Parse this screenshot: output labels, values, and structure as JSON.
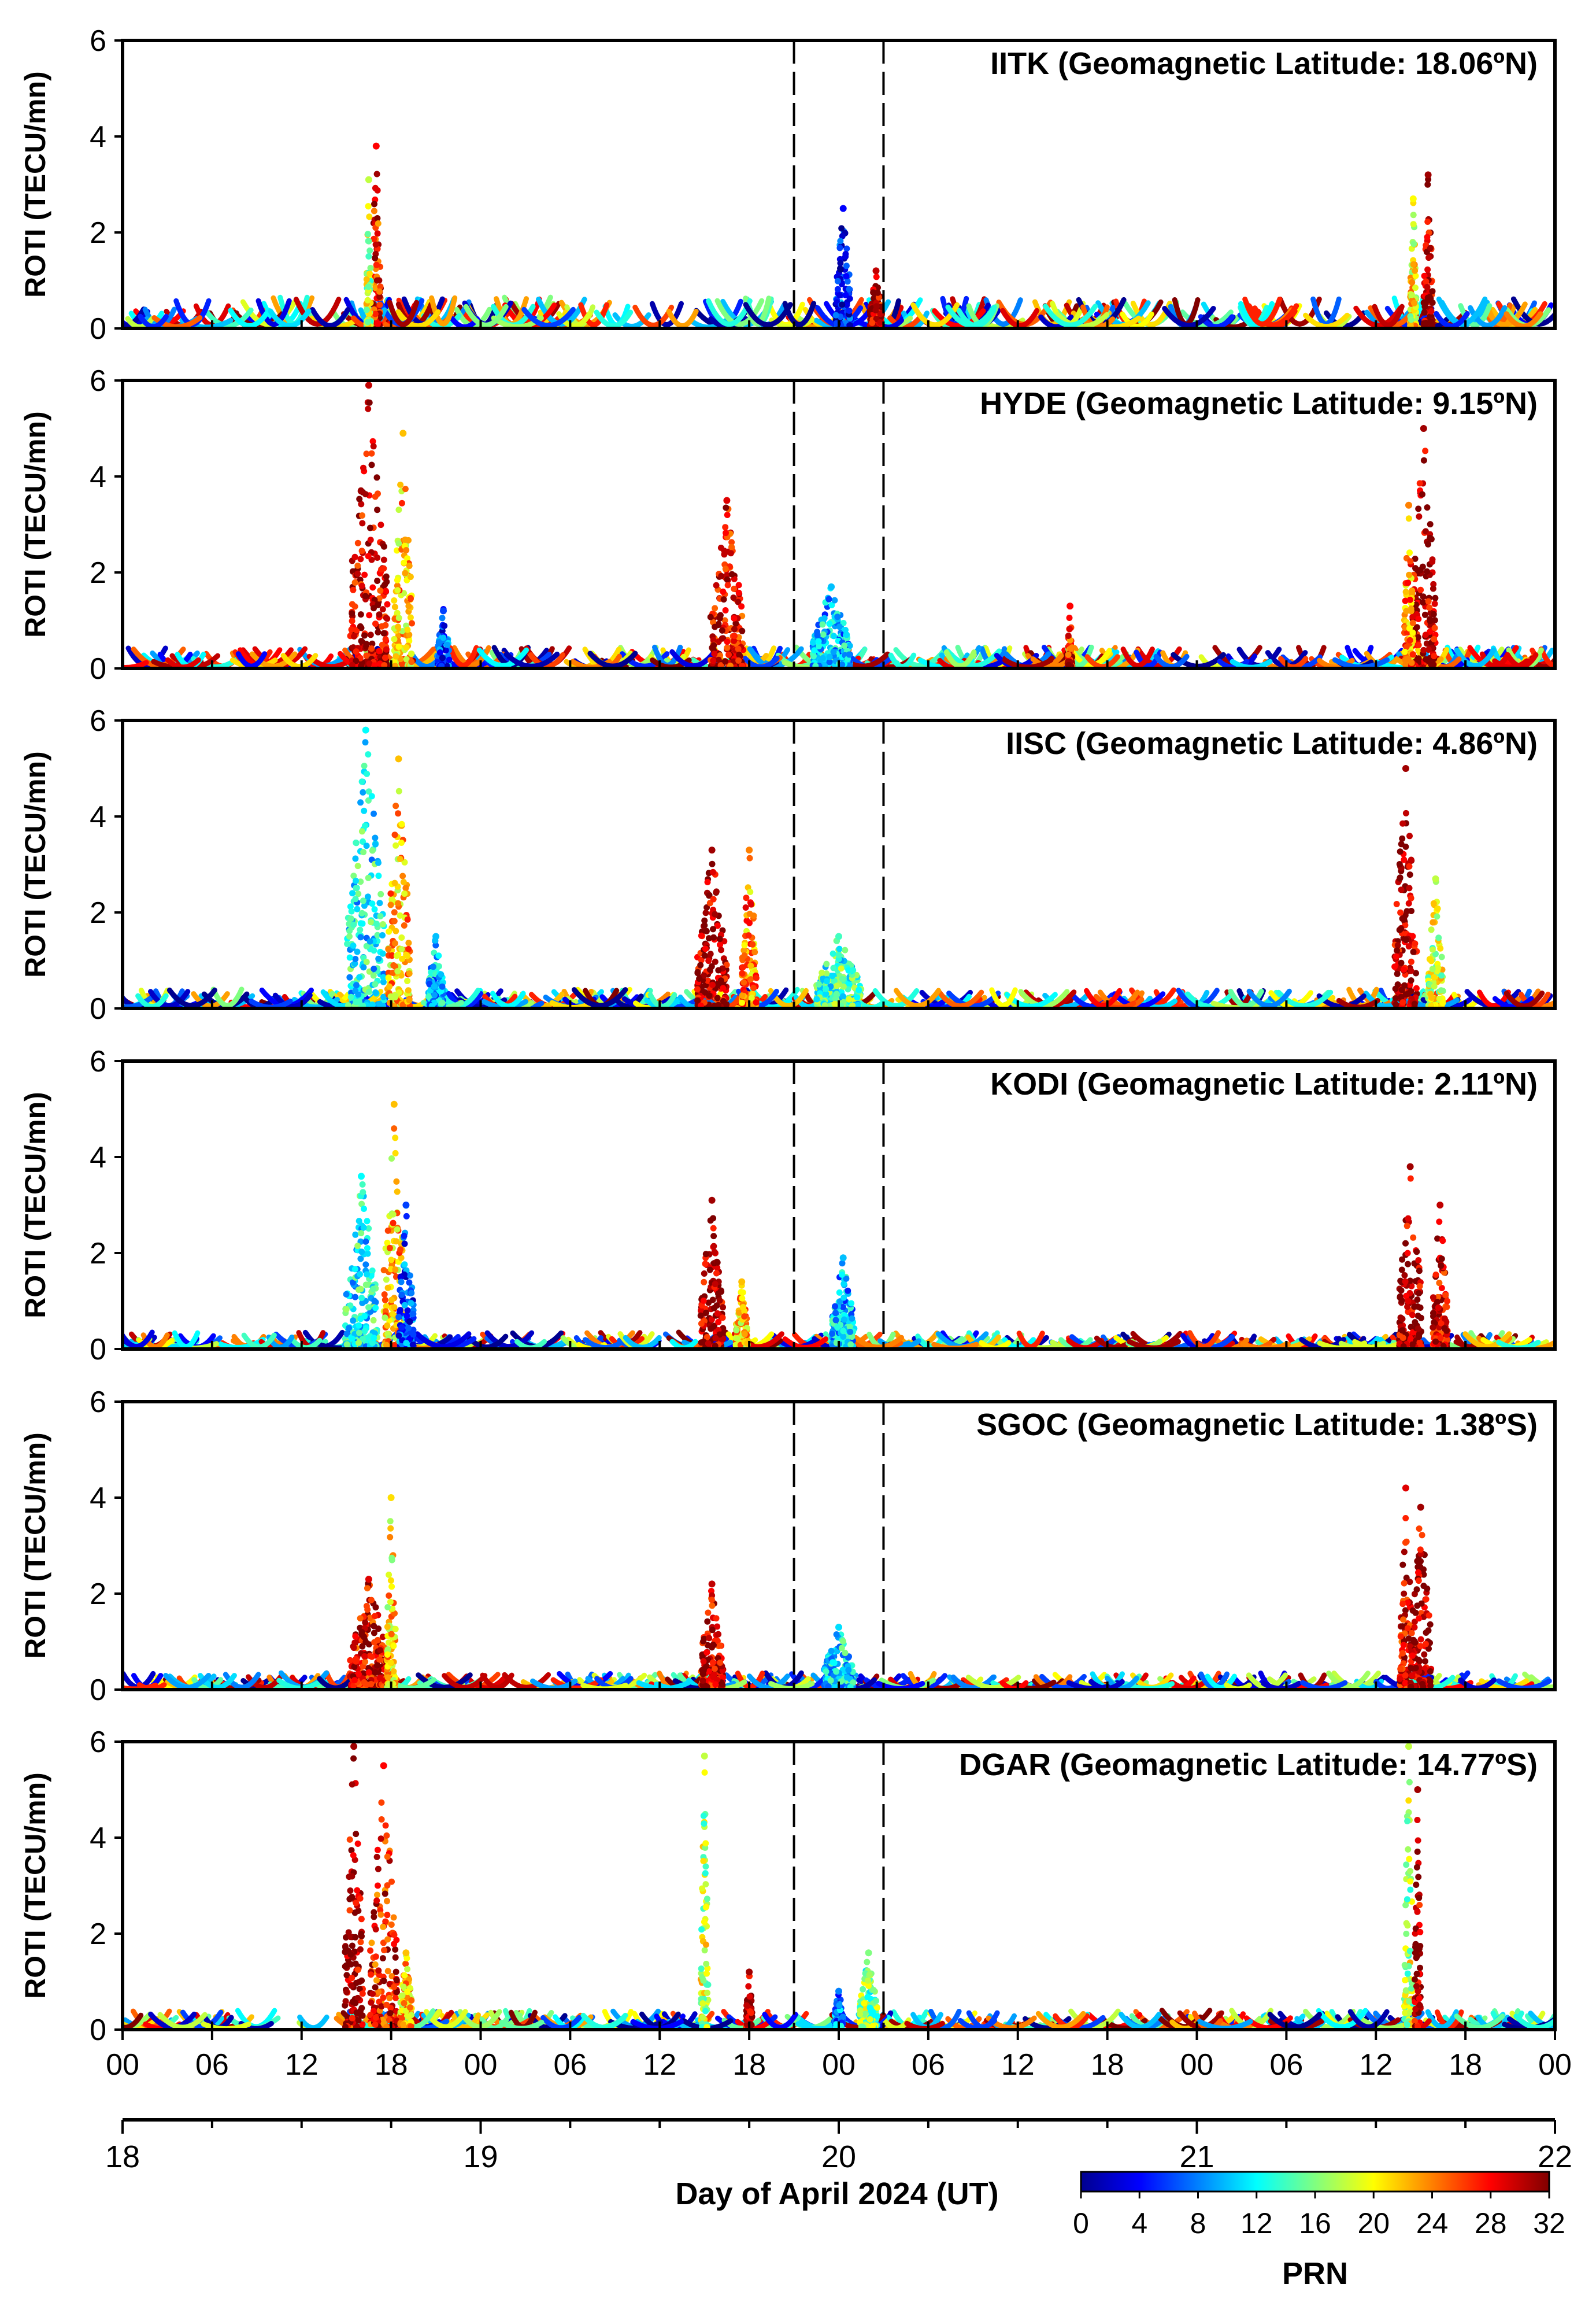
{
  "chart_data": {
    "type": "scatter",
    "xlabel": "Day of April 2024 (UT)",
    "xlim_hours": [
      0,
      96
    ],
    "hour_tick_labels": [
      "00",
      "06",
      "12",
      "18",
      "00",
      "06",
      "12",
      "18",
      "00",
      "06",
      "12",
      "18",
      "00",
      "06",
      "12",
      "18",
      "00"
    ],
    "day_tick_labels": [
      "18",
      "19",
      "20",
      "21",
      "22"
    ],
    "vlines_hours": [
      45,
      51
    ],
    "colorbar": {
      "label": "PRN",
      "range": [
        0,
        32
      ],
      "tick_labels": [
        "0",
        "4",
        "8",
        "12",
        "16",
        "20",
        "24",
        "28",
        "32"
      ],
      "colormap": [
        "#00008f",
        "#0000ff",
        "#0080ff",
        "#00ffff",
        "#80ff80",
        "#ffff00",
        "#ff8000",
        "#ff0000",
        "#800000"
      ]
    },
    "panels": [
      {
        "title": "IITK (Geomagnetic Latitude: 18.06ºN)",
        "ylabel": "ROTI (TECU/mn)",
        "ylim": [
          0,
          6
        ],
        "ytick_labels": [
          "0",
          "2",
          "4",
          "6"
        ],
        "baseline": 0.65,
        "bursts": [
          {
            "center": 17.0,
            "width": 0.6,
            "peak": 3.8,
            "prn": 28
          },
          {
            "center": 16.5,
            "width": 0.3,
            "peak": 3.1,
            "prn": 18
          },
          {
            "center": 48.3,
            "width": 1.0,
            "peak": 2.5,
            "prn": 4
          },
          {
            "center": 50.5,
            "width": 0.8,
            "peak": 1.2,
            "prn": 30
          },
          {
            "center": 87.5,
            "width": 0.6,
            "peak": 3.2,
            "prn": 31
          },
          {
            "center": 86.5,
            "width": 0.4,
            "peak": 2.7,
            "prn": 20
          }
        ]
      },
      {
        "title": "HYDE (Geomagnetic Latitude: 9.15ºN)",
        "ylabel": "ROTI (TECU/mn)",
        "ylim": [
          0,
          6
        ],
        "ytick_labels": [
          "0",
          "2",
          "4",
          "6"
        ],
        "baseline": 0.45,
        "bursts": [
          {
            "center": 16.5,
            "width": 2.5,
            "peak": 5.9,
            "prn": 30
          },
          {
            "center": 18.8,
            "width": 1.2,
            "peak": 4.9,
            "prn": 22
          },
          {
            "center": 21.5,
            "width": 0.8,
            "peak": 1.2,
            "prn": 6
          },
          {
            "center": 40.5,
            "width": 2.2,
            "peak": 3.5,
            "prn": 29
          },
          {
            "center": 47.5,
            "width": 2.5,
            "peak": 1.7,
            "prn": 10
          },
          {
            "center": 63.5,
            "width": 0.3,
            "peak": 1.3,
            "prn": 28
          },
          {
            "center": 87.2,
            "width": 1.6,
            "peak": 5.0,
            "prn": 31
          },
          {
            "center": 86.2,
            "width": 0.6,
            "peak": 3.4,
            "prn": 24
          }
        ]
      },
      {
        "title": "IISC (Geomagnetic Latitude: 4.86ºN)",
        "ylabel": "ROTI (TECU/mn)",
        "ylim": [
          0,
          6
        ],
        "ytick_labels": [
          "0",
          "2",
          "4",
          "6"
        ],
        "baseline": 0.4,
        "bursts": [
          {
            "center": 16.3,
            "width": 2.5,
            "peak": 5.8,
            "prn": 12
          },
          {
            "center": 18.5,
            "width": 1.5,
            "peak": 5.2,
            "prn": 22
          },
          {
            "center": 21.0,
            "width": 1.0,
            "peak": 1.5,
            "prn": 10
          },
          {
            "center": 39.5,
            "width": 2.0,
            "peak": 3.3,
            "prn": 31
          },
          {
            "center": 42.0,
            "width": 1.0,
            "peak": 3.3,
            "prn": 24
          },
          {
            "center": 48.0,
            "width": 3.0,
            "peak": 1.5,
            "prn": 14
          },
          {
            "center": 86.0,
            "width": 1.5,
            "peak": 5.0,
            "prn": 31
          },
          {
            "center": 88.0,
            "width": 1.0,
            "peak": 2.7,
            "prn": 18
          }
        ]
      },
      {
        "title": "KODI (Geomagnetic Latitude: 2.11ºN)",
        "ylabel": "ROTI (TECU/mn)",
        "ylim": [
          0,
          6
        ],
        "ytick_labels": [
          "0",
          "2",
          "4",
          "6"
        ],
        "baseline": 0.35,
        "bursts": [
          {
            "center": 16.0,
            "width": 2.2,
            "peak": 3.6,
            "prn": 12
          },
          {
            "center": 18.2,
            "width": 1.4,
            "peak": 5.1,
            "prn": 22
          },
          {
            "center": 19.0,
            "width": 1.0,
            "peak": 3.0,
            "prn": 6
          },
          {
            "center": 39.5,
            "width": 1.5,
            "peak": 3.1,
            "prn": 31
          },
          {
            "center": 41.5,
            "width": 0.8,
            "peak": 1.4,
            "prn": 22
          },
          {
            "center": 48.3,
            "width": 1.5,
            "peak": 1.9,
            "prn": 10
          },
          {
            "center": 86.3,
            "width": 1.5,
            "peak": 3.8,
            "prn": 31
          },
          {
            "center": 88.3,
            "width": 1.0,
            "peak": 3.0,
            "prn": 30
          }
        ]
      },
      {
        "title": "SGOC (Geomagnetic Latitude: 1.38ºS)",
        "ylabel": "ROTI (TECU/mn)",
        "ylim": [
          0,
          6
        ],
        "ytick_labels": [
          "0",
          "2",
          "4",
          "6"
        ],
        "baseline": 0.35,
        "bursts": [
          {
            "center": 16.5,
            "width": 2.5,
            "peak": 2.3,
            "prn": 29
          },
          {
            "center": 18.0,
            "width": 0.6,
            "peak": 4.0,
            "prn": 21
          },
          {
            "center": 39.5,
            "width": 1.5,
            "peak": 2.2,
            "prn": 30
          },
          {
            "center": 48.0,
            "width": 2.0,
            "peak": 1.3,
            "prn": 11
          },
          {
            "center": 86.0,
            "width": 0.8,
            "peak": 4.2,
            "prn": 29
          },
          {
            "center": 87.0,
            "width": 1.4,
            "peak": 3.8,
            "prn": 31
          }
        ]
      },
      {
        "title": "DGAR (Geomagnetic Latitude: 14.77ºS)",
        "ylabel": "ROTI (TECU/mn)",
        "ylim": [
          0,
          6
        ],
        "ytick_labels": [
          "0",
          "2",
          "4",
          "6"
        ],
        "baseline": 0.4,
        "bursts": [
          {
            "center": 15.5,
            "width": 1.2,
            "peak": 5.9,
            "prn": 31
          },
          {
            "center": 17.5,
            "width": 1.8,
            "peak": 5.5,
            "prn": 28
          },
          {
            "center": 19.0,
            "width": 0.8,
            "peak": 1.6,
            "prn": 22
          },
          {
            "center": 39.0,
            "width": 0.5,
            "peak": 5.7,
            "prn": 18
          },
          {
            "center": 42.0,
            "width": 0.4,
            "peak": 1.2,
            "prn": 31
          },
          {
            "center": 50.0,
            "width": 1.2,
            "peak": 1.6,
            "prn": 16
          },
          {
            "center": 48.0,
            "width": 0.6,
            "peak": 0.8,
            "prn": 8
          },
          {
            "center": 86.2,
            "width": 0.6,
            "peak": 5.9,
            "prn": 18
          },
          {
            "center": 86.8,
            "width": 0.4,
            "peak": 5.0,
            "prn": 31
          }
        ]
      }
    ]
  }
}
